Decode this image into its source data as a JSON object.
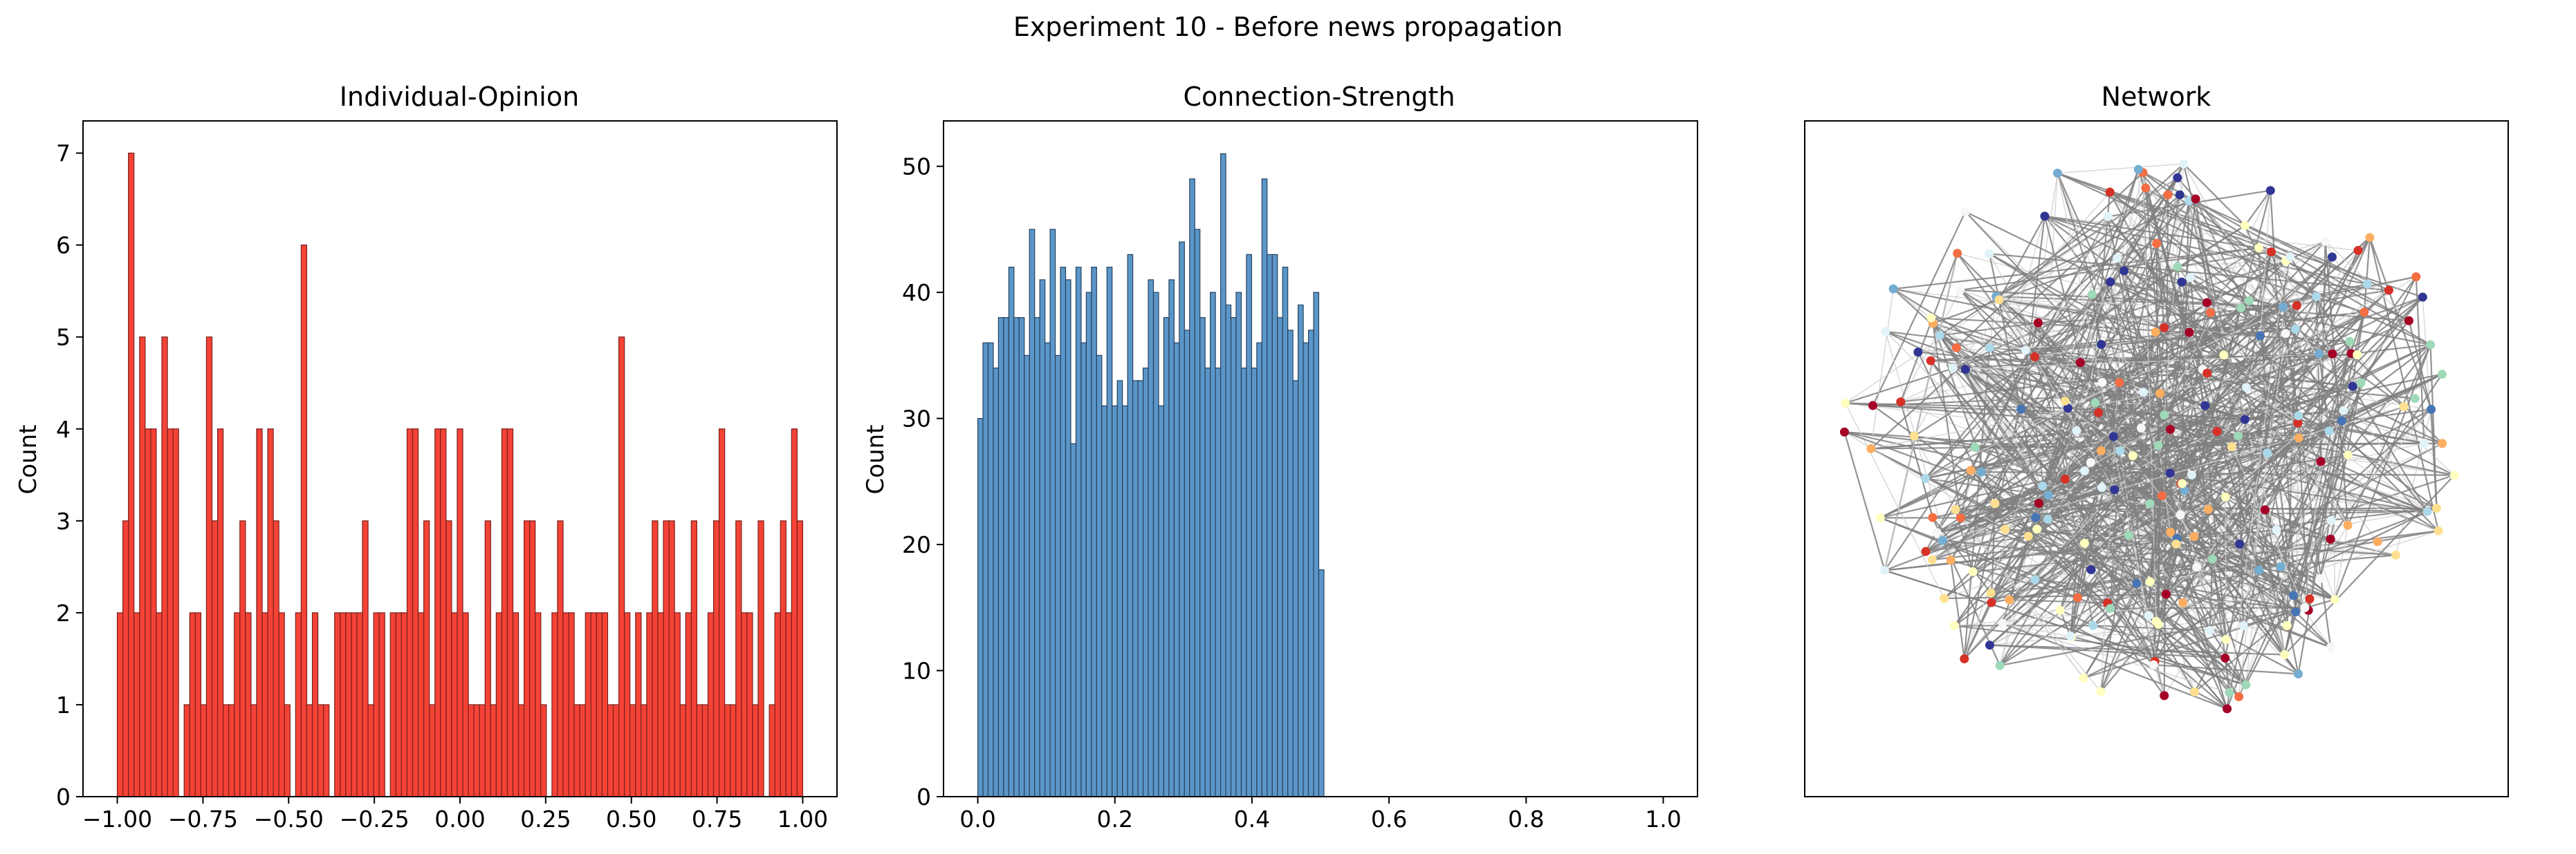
{
  "figure": {
    "suptitle": "Experiment 10 - Before news propagation"
  },
  "chart_data": [
    {
      "type": "bar",
      "title": "Individual-Opinion",
      "xlabel": "",
      "ylabel": "Count",
      "xlim": [
        -1.1,
        1.1
      ],
      "ylim": [
        0,
        7.35
      ],
      "xticks": [
        -1.0,
        -0.75,
        -0.5,
        -0.25,
        0.0,
        0.25,
        0.5,
        0.75,
        1.0
      ],
      "xtick_labels": [
        "−1.00",
        "−0.75",
        "−0.50",
        "−0.25",
        "0.00",
        "0.25",
        "0.50",
        "0.75",
        "1.00"
      ],
      "yticks": [
        0,
        1,
        2,
        3,
        4,
        5,
        6,
        7
      ],
      "ytick_labels": [
        "0",
        "1",
        "2",
        "3",
        "4",
        "5",
        "6",
        "7"
      ],
      "bin_range": [
        -1.0,
        1.0
      ],
      "values": [
        2,
        3,
        7,
        2,
        5,
        4,
        4,
        2,
        5,
        4,
        4,
        0,
        1,
        2,
        2,
        1,
        5,
        3,
        4,
        1,
        1,
        2,
        3,
        2,
        1,
        4,
        2,
        4,
        3,
        2,
        1,
        0,
        2,
        6,
        1,
        2,
        1,
        1,
        0,
        2,
        2,
        2,
        2,
        2,
        3,
        1,
        2,
        2,
        0,
        2,
        2,
        2,
        4,
        4,
        2,
        3,
        1,
        4,
        4,
        3,
        2,
        4,
        2,
        1,
        1,
        1,
        3,
        1,
        2,
        4,
        4,
        2,
        1,
        3,
        3,
        2,
        1,
        0,
        2,
        3,
        2,
        2,
        1,
        1,
        2,
        2,
        2,
        2,
        1,
        1,
        5,
        2,
        1,
        2,
        1,
        2,
        3,
        2,
        3,
        3,
        2,
        1,
        2,
        3,
        1,
        1,
        2,
        3,
        4,
        1,
        1,
        3,
        2,
        2,
        1,
        3,
        0,
        1,
        2,
        3,
        2,
        4,
        3
      ],
      "color": "#f44336",
      "edge_color": "#7a1f1a"
    },
    {
      "type": "bar",
      "title": "Connection-Strength",
      "xlabel": "",
      "ylabel": "Count",
      "xlim": [
        -0.05,
        1.05
      ],
      "ylim": [
        0,
        53.6
      ],
      "xticks": [
        0.0,
        0.2,
        0.4,
        0.6,
        0.8,
        1.0
      ],
      "xtick_labels": [
        "0.0",
        "0.2",
        "0.4",
        "0.6",
        "0.8",
        "1.0"
      ],
      "yticks": [
        0,
        10,
        20,
        30,
        40,
        50
      ],
      "ytick_labels": [
        "0",
        "10",
        "20",
        "30",
        "40",
        "50"
      ],
      "bin_range": [
        0.0,
        0.505
      ],
      "values": [
        30,
        36,
        36,
        34,
        38,
        38,
        42,
        38,
        38,
        35,
        45,
        38,
        41,
        36,
        45,
        35,
        42,
        41,
        28,
        42,
        36,
        40,
        42,
        35,
        31,
        42,
        31,
        33,
        31,
        43,
        33,
        33,
        34,
        41,
        40,
        31,
        38,
        41,
        36,
        44,
        37,
        49,
        45,
        38,
        34,
        40,
        34,
        51,
        39,
        38,
        40,
        34,
        43,
        34,
        36,
        49,
        43,
        43,
        38,
        42,
        37,
        33,
        39,
        36,
        37,
        40,
        18
      ],
      "color": "#5b96c9",
      "edge_color": "#27415d"
    },
    {
      "type": "network",
      "title": "Network",
      "node_count": 240,
      "edge_color": "#808080",
      "node_palette": [
        "#a50026",
        "#d73027",
        "#f46d43",
        "#fdae61",
        "#fee090",
        "#ffffbf",
        "#e0f3f8",
        "#abd9e9",
        "#74add1",
        "#4575b4",
        "#313695",
        "#f7f7f7",
        "#9ed9b8"
      ]
    }
  ]
}
